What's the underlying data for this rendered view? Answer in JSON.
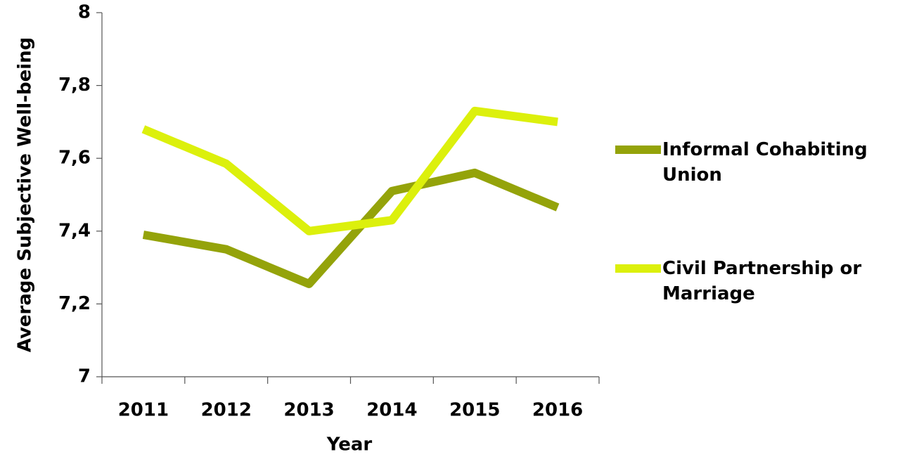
{
  "chart_data": {
    "type": "line",
    "x_label": "Year",
    "y_label": "Average Subjective Well-being",
    "categories": [
      "2011",
      "2012",
      "2013",
      "2014",
      "2015",
      "2016"
    ],
    "series": [
      {
        "name": "Informal Cohabiting Union",
        "color": "#94a30a",
        "values": [
          7.39,
          7.35,
          7.255,
          7.51,
          7.56,
          7.465
        ]
      },
      {
        "name": "Civil Partnership or Marriage",
        "color": "#dcf00c",
        "values": [
          7.68,
          7.585,
          7.4,
          7.43,
          7.73,
          7.7
        ]
      }
    ],
    "ylim": [
      7,
      8
    ],
    "yticks": [
      7,
      {
        "value": 7.2,
        "label": "7,2"
      },
      {
        "value": 7.4,
        "label": "7,4"
      },
      {
        "value": 7.6,
        "label": "7,6"
      },
      {
        "value": 7.8,
        "label": "7,8"
      },
      8
    ],
    "legend": "right"
  }
}
